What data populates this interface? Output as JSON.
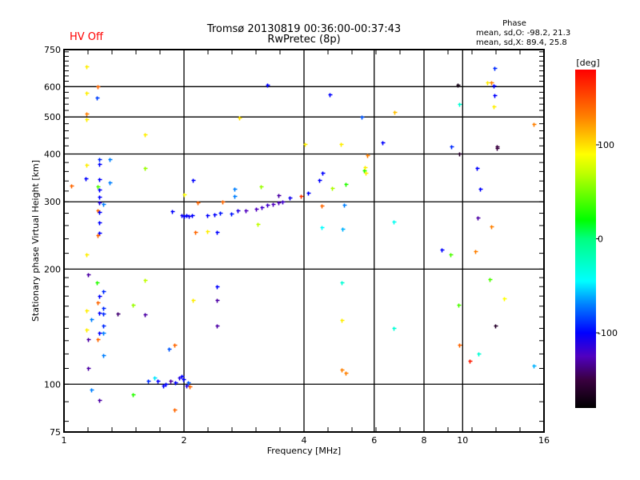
{
  "header": {
    "title_line1": "Tromsø 20130819 00:36:00-00:37:43",
    "title_line2": "RwPretec (8p)",
    "hv_status": "HV Off",
    "phase_title": "Phase",
    "phase_o": "mean, sd,O: -98.2, 21.3",
    "phase_x": "mean, sd,X:  89.4, 25.8"
  },
  "colorbar": {
    "label": "[deg]",
    "range": [
      -180,
      180
    ],
    "ticks": [
      {
        "value": 100,
        "label": "100"
      },
      {
        "value": 0,
        "label": "0"
      },
      {
        "value": -100,
        "label": "-100"
      }
    ],
    "stops": [
      [
        -180,
        "#000000"
      ],
      [
        -150,
        "#3a0040"
      ],
      [
        -125,
        "#5000c0"
      ],
      [
        -100,
        "#0000ff"
      ],
      [
        -70,
        "#0080ff"
      ],
      [
        -45,
        "#00ffff"
      ],
      [
        0,
        "#00ff80"
      ],
      [
        20,
        "#00ff00"
      ],
      [
        70,
        "#c0ff00"
      ],
      [
        90,
        "#ffff00"
      ],
      [
        130,
        "#ff8000"
      ],
      [
        180,
        "#ff0000"
      ]
    ]
  },
  "chart_data": {
    "type": "scatter",
    "title": "Tromsø 20130819 00:36:00-00:37:43",
    "xlabel": "Frequency [MHz]",
    "ylabel": "Stationary phase Virtual Height [km]",
    "xscale": "log",
    "yscale": "log",
    "xlim": [
      1,
      16
    ],
    "ylim": [
      75,
      750
    ],
    "xticks": [
      {
        "v": 1,
        "l": "1"
      },
      {
        "v": 2,
        "l": "2"
      },
      {
        "v": 4,
        "l": "4"
      },
      {
        "v": 6,
        "l": "6"
      },
      {
        "v": 8,
        "l": "8"
      },
      {
        "v": 10,
        "l": "10"
      },
      {
        "v": 16,
        "l": "16"
      }
    ],
    "yticks": [
      {
        "v": 75,
        "l": "75"
      },
      {
        "v": 100,
        "l": "100"
      },
      {
        "v": 200,
        "l": "200"
      },
      {
        "v": 300,
        "l": "300"
      },
      {
        "v": 400,
        "l": "400"
      },
      {
        "v": 500,
        "l": "500"
      },
      {
        "v": 600,
        "l": "600"
      },
      {
        "v": 750,
        "l": "750"
      }
    ],
    "xgrid": [
      2,
      4,
      6,
      8,
      10
    ],
    "ygrid": [
      100,
      200,
      300,
      400,
      500,
      600
    ],
    "color_by": "phase [deg]",
    "points_fields": [
      "frequency_mhz",
      "height_km",
      "phase_deg"
    ],
    "points": [
      [
        1.87,
        283,
        -100
      ],
      [
        1.97,
        277,
        -105
      ],
      [
        2.0,
        276,
        -100
      ],
      [
        2.03,
        277,
        -100
      ],
      [
        2.06,
        276,
        -105
      ],
      [
        2.09,
        277,
        -100
      ],
      [
        2.29,
        277,
        -100
      ],
      [
        2.38,
        278,
        -100
      ],
      [
        2.46,
        281,
        -95
      ],
      [
        2.63,
        279,
        -95
      ],
      [
        2.73,
        285,
        -110
      ],
      [
        2.86,
        285,
        -125
      ],
      [
        3.03,
        288,
        -125
      ],
      [
        3.13,
        291,
        -120
      ],
      [
        3.23,
        294,
        -120
      ],
      [
        3.34,
        296,
        -125
      ],
      [
        3.45,
        299,
        -125
      ],
      [
        3.53,
        301,
        -120
      ],
      [
        3.68,
        307,
        -105
      ],
      [
        3.93,
        311,
        160
      ],
      [
        2.1,
        342,
        -100
      ],
      [
        2.0,
        313,
        90
      ],
      [
        2.16,
        299,
        140
      ],
      [
        2.13,
        250,
        140
      ],
      [
        2.29,
        251,
        95
      ],
      [
        2.42,
        250,
        -100
      ],
      [
        2.67,
        324,
        -70
      ],
      [
        2.67,
        310,
        -70
      ],
      [
        3.11,
        329,
        60
      ],
      [
        3.45,
        312,
        -130
      ],
      [
        4.09,
        316,
        -100
      ],
      [
        4.37,
        342,
        -100
      ],
      [
        4.7,
        326,
        65
      ],
      [
        5.09,
        334,
        30
      ],
      [
        4.42,
        293,
        140
      ],
      [
        4.42,
        257,
        -45
      ],
      [
        3.06,
        262,
        70
      ],
      [
        2.5,
        301,
        140
      ],
      [
        1.138,
        678,
        95
      ],
      [
        1.214,
        600,
        140
      ],
      [
        1.138,
        578,
        95
      ],
      [
        1.208,
        562,
        -85
      ],
      [
        1.138,
        510,
        130
      ],
      [
        1.138,
        493,
        95
      ],
      [
        1.595,
        450,
        95
      ],
      [
        1.225,
        388,
        -90
      ],
      [
        1.301,
        388,
        -70
      ],
      [
        1.138,
        375,
        95
      ],
      [
        1.225,
        376,
        -100
      ],
      [
        1.595,
        368,
        60
      ],
      [
        1.133,
        345,
        -100
      ],
      [
        1.225,
        344,
        -100
      ],
      [
        1.301,
        337,
        -70
      ],
      [
        1.042,
        331,
        140
      ],
      [
        1.214,
        329,
        40
      ],
      [
        1.225,
        323,
        -100
      ],
      [
        1.225,
        309,
        -100
      ],
      [
        1.225,
        299,
        -110
      ],
      [
        1.254,
        296,
        -70
      ],
      [
        1.214,
        285,
        140
      ],
      [
        1.225,
        282,
        -100
      ],
      [
        1.225,
        265,
        -100
      ],
      [
        1.225,
        249,
        -100
      ],
      [
        1.214,
        245,
        140
      ],
      [
        1.138,
        219,
        95
      ],
      [
        1.149,
        194,
        -130
      ],
      [
        1.208,
        185,
        30
      ],
      [
        1.254,
        175,
        -90
      ],
      [
        1.225,
        170,
        -100
      ],
      [
        1.214,
        164,
        140
      ],
      [
        1.254,
        158,
        -90
      ],
      [
        1.138,
        156,
        95
      ],
      [
        1.225,
        154,
        -100
      ],
      [
        1.254,
        153,
        -90
      ],
      [
        1.17,
        148,
        -70
      ],
      [
        1.254,
        142,
        -90
      ],
      [
        1.138,
        139,
        95
      ],
      [
        1.225,
        136,
        -100
      ],
      [
        1.254,
        136,
        -70
      ],
      [
        1.149,
        131,
        -130
      ],
      [
        1.214,
        131,
        140
      ],
      [
        1.254,
        119,
        -70
      ],
      [
        1.149,
        110,
        -130
      ],
      [
        1.17,
        97,
        -70
      ],
      [
        1.225,
        91,
        -130
      ],
      [
        1.488,
        161,
        60
      ],
      [
        1.595,
        187,
        70
      ],
      [
        1.595,
        152,
        -130
      ],
      [
        1.363,
        153,
        -140
      ],
      [
        1.488,
        94,
        30
      ],
      [
        1.832,
        124,
        -80
      ],
      [
        1.892,
        127,
        140
      ],
      [
        1.892,
        86,
        140
      ],
      [
        2.1,
        166,
        95
      ],
      [
        2.42,
        180,
        -100
      ],
      [
        2.42,
        166,
        -130
      ],
      [
        2.42,
        142,
        -130
      ],
      [
        1.625,
        102,
        -90
      ],
      [
        1.686,
        104,
        -50
      ],
      [
        1.717,
        102,
        -100
      ],
      [
        1.774,
        99,
        -100
      ],
      [
        1.8,
        100,
        -100
      ],
      [
        1.849,
        102,
        -130
      ],
      [
        1.9,
        101,
        -100
      ],
      [
        1.945,
        104,
        -110
      ],
      [
        1.972,
        105,
        -100
      ],
      [
        1.99,
        103,
        -100
      ],
      [
        2.03,
        99,
        -110
      ],
      [
        2.05,
        101,
        -80
      ],
      [
        2.07,
        98.5,
        140
      ],
      [
        3.23,
        607,
        -100
      ],
      [
        4.64,
        573,
        -100
      ],
      [
        5.58,
        500,
        -80
      ],
      [
        6.29,
        429,
        -100
      ],
      [
        6.75,
        515,
        110
      ],
      [
        4.95,
        425,
        95
      ],
      [
        4.02,
        425,
        95
      ],
      [
        2.75,
        498,
        100
      ],
      [
        9.71,
        607,
        -170
      ],
      [
        9.8,
        541,
        -30
      ],
      [
        9.8,
        401,
        -160
      ],
      [
        9.36,
        419,
        -90
      ],
      [
        11.52,
        615,
        95
      ],
      [
        11.81,
        615,
        130
      ],
      [
        12.0,
        671,
        -90
      ],
      [
        11.94,
        604,
        -100
      ],
      [
        12.0,
        570,
        -100
      ],
      [
        11.94,
        533,
        95
      ],
      [
        12.2,
        419,
        -150
      ],
      [
        12.2,
        414,
        -150
      ],
      [
        15.1,
        479,
        130
      ],
      [
        4.45,
        357,
        -100
      ],
      [
        5.66,
        362,
        30
      ],
      [
        5.7,
        357,
        95
      ],
      [
        5.68,
        370,
        95
      ],
      [
        5.75,
        397,
        130
      ],
      [
        5.04,
        294,
        -70
      ],
      [
        5.0,
        255,
        -60
      ],
      [
        6.71,
        266,
        -40
      ],
      [
        10.84,
        367,
        -100
      ],
      [
        11.04,
        324,
        -100
      ],
      [
        10.9,
        273,
        -130
      ],
      [
        11.81,
        259,
        130
      ],
      [
        8.86,
        225,
        -100
      ],
      [
        9.32,
        219,
        40
      ],
      [
        10.75,
        223,
        130
      ],
      [
        11.7,
        188,
        40
      ],
      [
        12.7,
        168,
        90
      ],
      [
        9.76,
        161,
        40
      ],
      [
        12.06,
        142,
        -160
      ],
      [
        4.97,
        185,
        -30
      ],
      [
        4.97,
        147,
        95
      ],
      [
        6.71,
        140,
        -30
      ],
      [
        9.8,
        127,
        140
      ],
      [
        10.97,
        120,
        -30
      ],
      [
        10.41,
        115,
        170
      ],
      [
        4.97,
        109,
        130
      ],
      [
        5.09,
        107,
        130
      ],
      [
        15.1,
        112,
        -60
      ]
    ]
  }
}
